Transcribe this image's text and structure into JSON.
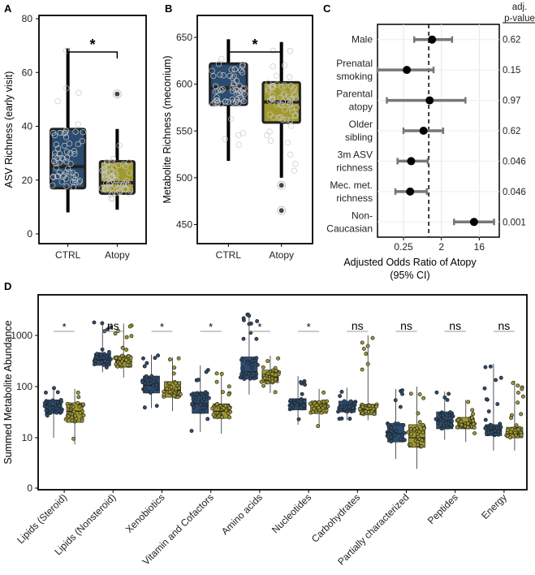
{
  "chart_data": [
    {
      "panel": "A",
      "type": "box",
      "ylabel": "ASV Richness (early visit)",
      "ylim": [
        0,
        80
      ],
      "yticks": [
        0,
        20,
        40,
        60,
        80
      ],
      "categories": [
        "CTRL",
        "Atopy"
      ],
      "boxes": [
        {
          "name": "CTRL",
          "color": "#2b4c6f",
          "q1": 17,
          "median": 25,
          "q3": 39,
          "whisker_low": 8,
          "whisker_high": 69,
          "outliers": []
        },
        {
          "name": "Atopy",
          "color": "#a09a2c",
          "q1": 15,
          "median": 19,
          "q3": 27,
          "whisker_low": 9,
          "whisker_high": 39,
          "outliers": [
            52
          ]
        }
      ],
      "significance": "*"
    },
    {
      "panel": "B",
      "type": "box",
      "ylabel": "Metabolite Richness (meconium)",
      "ylim": [
        440,
        670
      ],
      "yticks": [
        450,
        500,
        550,
        600,
        650
      ],
      "categories": [
        "CTRL",
        "Atopy"
      ],
      "boxes": [
        {
          "name": "CTRL",
          "color": "#2b4c6f",
          "q1": 578,
          "median": 596,
          "q3": 622,
          "whisker_low": 518,
          "whisker_high": 648,
          "outliers": []
        },
        {
          "name": "Atopy",
          "color": "#a09a2c",
          "q1": 559,
          "median": 581,
          "q3": 602,
          "whisker_low": 500,
          "whisker_high": 645,
          "outliers": [
            492,
            465
          ]
        }
      ],
      "significance": "*"
    },
    {
      "panel": "C",
      "type": "forest",
      "xlabel": "Adjusted Odds Ratio of Atopy",
      "xlabel2": "(95% CI)",
      "xscale": "log2",
      "xticks": [
        0.25,
        2,
        16
      ],
      "xtick_labels": [
        "0.25",
        "2",
        "16"
      ],
      "reference_line": 1,
      "pheader1": "adj.",
      "pheader2": "p-value",
      "rows": [
        {
          "label": [
            "Male"
          ],
          "or": 1.2,
          "lo": 0.45,
          "hi": 3.6,
          "p": "0.62"
        },
        {
          "label": [
            "Prenatal",
            "smoking"
          ],
          "or": 0.3,
          "lo": 0.06,
          "hi": 1.3,
          "p": "0.15"
        },
        {
          "label": [
            "Parental",
            "atopy"
          ],
          "or": 1.05,
          "lo": 0.1,
          "hi": 7.5,
          "p": "0.97"
        },
        {
          "label": [
            "Older",
            "sibling"
          ],
          "or": 0.75,
          "lo": 0.25,
          "hi": 2.2,
          "p": "0.62"
        },
        {
          "label": [
            "3m ASV",
            "richness"
          ],
          "or": 0.38,
          "lo": 0.18,
          "hi": 0.95,
          "p": "0.046"
        },
        {
          "label": [
            "Mec. met.",
            "richness"
          ],
          "or": 0.36,
          "lo": 0.16,
          "hi": 0.9,
          "p": "0.046"
        },
        {
          "label": [
            "Non-",
            "Caucasian"
          ],
          "or": 12,
          "lo": 4,
          "hi": 36,
          "p": "0.001"
        }
      ]
    },
    {
      "panel": "D",
      "type": "box",
      "ylabel": "Summed Metabolite Abundance",
      "yscale": "log10",
      "yticks": [
        0,
        10,
        100,
        1000
      ],
      "ytick_labels": [
        "0",
        "10",
        "100",
        "1000"
      ],
      "group_colors": {
        "CTRL": "#2b4c6f",
        "Atopy": "#a09a2c"
      },
      "categories": [
        "Lipids (Steroid)",
        "Lipids (Nonsteroid)",
        "Xenobiotics",
        "Vitamin and Cofactors",
        "Amino acids",
        "Nucleotides",
        "Carbohydrates",
        "Partially characterized",
        "Peptides",
        "Energy"
      ],
      "significance": [
        "*",
        "ns",
        "*",
        "*",
        "*",
        "*",
        "ns",
        "ns",
        "ns",
        "ns"
      ],
      "boxes": [
        [
          {
            "q1": 30,
            "median": 42,
            "q3": 55,
            "lo": 10,
            "hi": 95
          },
          {
            "q1": 20,
            "median": 33,
            "q3": 48,
            "lo": 7,
            "hi": 90
          }
        ],
        [
          {
            "q1": 260,
            "median": 330,
            "q3": 440,
            "lo": 190,
            "hi": 1800
          },
          {
            "q1": 240,
            "median": 310,
            "q3": 400,
            "lo": 150,
            "hi": 1700
          }
        ],
        [
          {
            "q1": 75,
            "median": 105,
            "q3": 160,
            "lo": 38,
            "hi": 420
          },
          {
            "q1": 62,
            "median": 85,
            "q3": 125,
            "lo": 33,
            "hi": 370
          }
        ],
        [
          {
            "q1": 30,
            "median": 46,
            "q3": 78,
            "lo": 13,
            "hi": 260
          },
          {
            "q1": 24,
            "median": 33,
            "q3": 46,
            "lo": 12,
            "hi": 190
          }
        ],
        [
          {
            "q1": 140,
            "median": 195,
            "q3": 380,
            "lo": 70,
            "hi": 2800
          },
          {
            "q1": 120,
            "median": 155,
            "q3": 210,
            "lo": 75,
            "hi": 400
          }
        ],
        [
          {
            "q1": 35,
            "median": 45,
            "q3": 58,
            "lo": 18,
            "hi": 160
          },
          {
            "q1": 30,
            "median": 40,
            "q3": 52,
            "lo": 16,
            "hi": 90
          }
        ],
        [
          {
            "q1": 32,
            "median": 40,
            "q3": 52,
            "lo": 22,
            "hi": 95
          },
          {
            "q1": 28,
            "median": 35,
            "q3": 45,
            "lo": 22,
            "hi": 1000
          }
        ],
        [
          {
            "q1": 8,
            "median": 12,
            "q3": 19,
            "lo": 3,
            "hi": 90
          },
          {
            "q1": 6,
            "median": 10,
            "q3": 18,
            "lo": 1.5,
            "hi": 100
          }
        ],
        [
          {
            "q1": 15,
            "median": 22,
            "q3": 32,
            "lo": 9,
            "hi": 80
          },
          {
            "q1": 15,
            "median": 19,
            "q3": 25,
            "lo": 8,
            "hi": 55
          }
        ],
        [
          {
            "q1": 11,
            "median": 14,
            "q3": 18,
            "lo": 5,
            "hi": 280
          },
          {
            "q1": 10,
            "median": 12,
            "q3": 16,
            "lo": 5,
            "hi": 130
          }
        ]
      ]
    }
  ]
}
